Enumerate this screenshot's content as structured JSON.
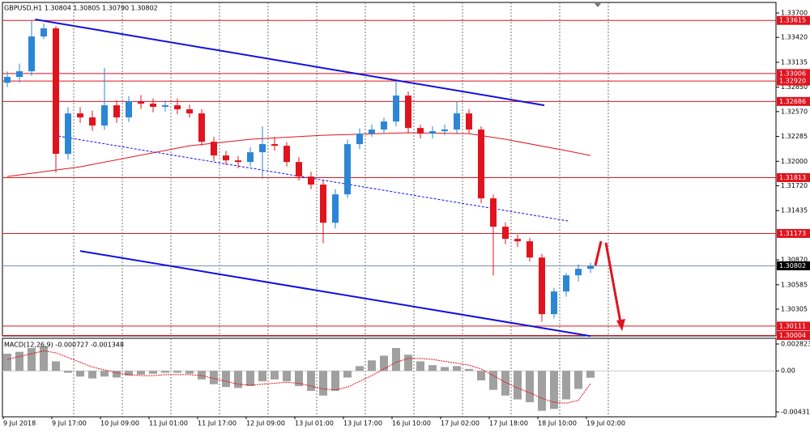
{
  "chart_data": {
    "type": "candlestick",
    "title": "GBPUSD,H1  1.30804 1.30805 1.30790 1.30802",
    "categories": [
      "9 Jul 2018",
      null,
      null,
      null,
      "9 Jul 17:00",
      null,
      null,
      null,
      "10 Jul 09:00",
      null,
      null,
      null,
      "11 Jul 01:00",
      null,
      null,
      null,
      "11 Jul 17:00",
      null,
      null,
      null,
      "12 Jul 09:00",
      null,
      null,
      null,
      "13 Jul 01:00",
      null,
      null,
      null,
      "13 Jul 17:00",
      null,
      null,
      null,
      "16 Jul 10:00",
      null,
      null,
      null,
      "17 Jul 02:00",
      null,
      null,
      null,
      "17 Jul 18:00",
      null,
      null,
      null,
      "18 Jul 10:00",
      null,
      null,
      null,
      "19 Jul 02:00"
    ],
    "open": [
      1.329,
      1.32967,
      1.33032,
      1.33431,
      1.33524,
      1.32085,
      1.32549,
      1.32503,
      1.3241,
      1.32642,
      1.32503,
      1.32688,
      1.32661,
      1.32624,
      1.32642,
      1.32596,
      1.32549,
      1.32224,
      1.32067,
      1.32011,
      1.31992,
      1.32104,
      1.32197,
      1.32178,
      1.31992,
      1.31825,
      1.31733,
      1.31296,
      1.31621,
      1.32197,
      1.32317,
      1.32364,
      1.32456,
      1.32753,
      1.32382,
      1.32317,
      1.32345,
      1.32364,
      1.32549,
      1.32364,
      1.31575,
      1.3125,
      1.31111,
      1.31083,
      1.30897,
      1.30248,
      1.30508,
      1.30693,
      1.30768
    ],
    "high": [
      1.3303,
      1.3312,
      1.3362,
      1.3358,
      1.3355,
      1.3262,
      1.3262,
      1.3258,
      1.3307,
      1.327,
      1.3275,
      1.3276,
      1.3272,
      1.327,
      1.3272,
      1.3265,
      1.326,
      1.3228,
      1.3212,
      1.3206,
      1.3216,
      1.324,
      1.3228,
      1.3222,
      1.3205,
      1.3188,
      1.3178,
      1.3168,
      1.3225,
      1.3238,
      1.3242,
      1.325,
      1.3292,
      1.328,
      1.3242,
      1.324,
      1.3242,
      1.3269,
      1.326,
      1.324,
      1.3162,
      1.313,
      1.3116,
      1.3112,
      1.3094,
      1.3055,
      1.3072,
      1.3082,
      1.3084
    ],
    "low": [
      1.3285,
      1.329,
      1.3298,
      1.334,
      1.3187,
      1.3202,
      1.3244,
      1.3235,
      1.3236,
      1.3244,
      1.3245,
      1.326,
      1.3256,
      1.3257,
      1.3254,
      1.325,
      1.3218,
      1.32,
      1.3196,
      1.3192,
      1.3194,
      1.318,
      1.3212,
      1.3194,
      1.3178,
      1.3168,
      1.3106,
      1.3123,
      1.3158,
      1.3214,
      1.3228,
      1.3232,
      1.324,
      1.3232,
      1.3226,
      1.3226,
      1.323,
      1.3232,
      1.3232,
      1.3152,
      1.3069,
      1.3105,
      1.3102,
      1.3085,
      1.3016,
      1.302,
      1.3045,
      1.3062,
      1.3072
    ],
    "close": [
      1.32967,
      1.33032,
      1.33431,
      1.33524,
      1.32085,
      1.32549,
      1.32503,
      1.3241,
      1.32642,
      1.32503,
      1.32688,
      1.32661,
      1.32624,
      1.32642,
      1.32596,
      1.32549,
      1.32224,
      1.32067,
      1.32011,
      1.31992,
      1.32104,
      1.32197,
      1.32178,
      1.31992,
      1.31825,
      1.31733,
      1.31296,
      1.31621,
      1.32197,
      1.32317,
      1.32364,
      1.32456,
      1.32753,
      1.32382,
      1.32317,
      1.32345,
      1.32364,
      1.32549,
      1.32364,
      1.31575,
      1.3125,
      1.31111,
      1.31083,
      1.30897,
      1.30248,
      1.30508,
      1.30693,
      1.30768,
      1.30802
    ],
    "up_color": "#2b86d6",
    "down_color": "#e0141e",
    "ylim": [
      1.29999,
      1.33821
    ],
    "yticks": [
      {
        "value": 1.337,
        "label": "1.33700"
      },
      {
        "value": 1.3342,
        "label": "1.33420"
      },
      1.33135,
      {
        "value": 1.3285,
        "label": "1.32850"
      },
      {
        "value": 1.3257,
        "label": "1.32570"
      },
      1.32285,
      {
        "value": 1.32,
        "label": "1.32000"
      },
      {
        "value": 1.3172,
        "label": "1.31720"
      },
      1.31435,
      {
        "value": 1.3087,
        "label": "1.30870"
      },
      1.30585,
      1.30305
    ],
    "grid": true,
    "levels": [
      1.33615,
      1.33006,
      {
        "value": 1.3292,
        "label": "1.32920"
      },
      1.32686,
      1.31813,
      1.31173,
      1.30111,
      1.30004
    ],
    "level_color": "#e0141e",
    "last_price": 1.30802,
    "last_price_color": "#7d91b0",
    "moving_average": {
      "color": "#e0141e",
      "x": [
        0,
        6,
        15,
        20,
        26,
        33,
        38,
        41,
        46,
        48
      ],
      "values": [
        1.31825,
        1.31937,
        1.32178,
        1.32252,
        1.32299,
        1.32327,
        1.32317,
        1.32252,
        1.32122,
        1.32067
      ]
    },
    "channel_color": "#1010e0",
    "channel": [
      {
        "x": [
          2.3,
          44.2
        ],
        "values": [
          1.33626,
          1.32642
        ],
        "dashed": false
      },
      {
        "x": [
          4.2,
          46.2
        ],
        "values": [
          1.32289,
          1.31315
        ],
        "dashed": true
      },
      {
        "x": [
          6,
          48
        ],
        "values": [
          1.30972,
          1.29997
        ],
        "dashed": false
      }
    ],
    "macd": {
      "title": "MACD(12,26,9) -0.000727 -0.001348",
      "histogram": [
        0.0018,
        0.002,
        0.0024,
        0.0026,
        0.001,
        -0.0002,
        -0.0006,
        -0.0008,
        -0.0006,
        -0.0007,
        -0.0005,
        -0.0004,
        -0.0003,
        -0.0002,
        -0.0002,
        -0.0003,
        -0.0009,
        -0.0014,
        -0.0017,
        -0.0018,
        -0.0016,
        -0.0011,
        -0.0009,
        -0.0011,
        -0.0016,
        -0.0021,
        -0.0026,
        -0.0021,
        -0.0007,
        0.0005,
        0.0011,
        0.0016,
        0.0024,
        0.0017,
        0.001,
        0.0006,
        0.0004,
        0.0005,
        0.0002,
        -0.001,
        -0.002,
        -0.0026,
        -0.003,
        -0.0033,
        -0.0042,
        -0.004,
        -0.003,
        -0.0019,
        -0.000727
      ],
      "signal": [
        0.0012,
        0.0015,
        0.0018,
        0.0021,
        0.0019,
        0.0014,
        0.0009,
        0.0004,
        0.0001,
        -0.0002,
        -0.0004,
        -0.0005,
        -0.0005,
        -0.0004,
        -0.0004,
        -0.0004,
        -0.0005,
        -0.0008,
        -0.0011,
        -0.0014,
        -0.0015,
        -0.0014,
        -0.0013,
        -0.0012,
        -0.0013,
        -0.0016,
        -0.0019,
        -0.002,
        -0.0017,
        -0.0011,
        -0.0005,
        0.0002,
        0.0009,
        0.0013,
        0.0013,
        0.0012,
        0.001,
        0.0008,
        0.0006,
        0.0002,
        -0.0005,
        -0.0012,
        -0.0018,
        -0.0023,
        -0.0029,
        -0.0033,
        -0.0034,
        -0.0031,
        -0.001348
      ],
      "histogram_color": "#a0a0a0",
      "signal_color": "#e0141e",
      "ylim": [
        -0.00483,
        0.00342
      ],
      "yticks": [
        0.002823,
        {
          "value": 0,
          "label": "0.00"
        },
        -0.004316
      ]
    }
  }
}
